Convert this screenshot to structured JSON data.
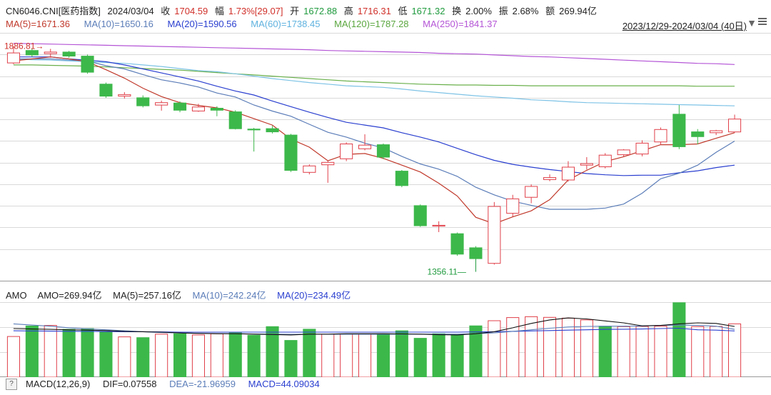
{
  "header": {
    "code": "CN6046.CNI[医药指数]",
    "date": "2024/03/04",
    "close_label": "收",
    "close": "1704.59",
    "change_label": "幅",
    "change": "1.73%[29.07]",
    "open_label": "开",
    "open": "1672.88",
    "high_label": "高",
    "high": "1716.31",
    "low_label": "低",
    "low": "1671.32",
    "turnover_label": "换",
    "turnover": "2.00%",
    "amplitude_label": "振",
    "amplitude": "2.68%",
    "amount_label": "额",
    "amount": "269.94亿"
  },
  "ma_line": {
    "ma5": "MA(5)=1671.36",
    "ma10": "MA(10)=1650.16",
    "ma20": "MA(20)=1590.56",
    "ma60": "MA(60)=1738.45",
    "ma120": "MA(120)=1787.28",
    "ma250": "MA(250)=1841.37",
    "range": "2023/12/29-2024/03/04 (40日)"
  },
  "amo_line": {
    "label": "AMO",
    "amo": "AMO=269.94亿",
    "ma5": "MA(5)=257.16亿",
    "ma10": "MA(10)=242.24亿",
    "ma20": "MA(20)=234.49亿"
  },
  "macd_line": {
    "help": "?",
    "label": "MACD(12,26,9)",
    "dif": "DIF=0.07558",
    "dea": "DEA=-21.96959",
    "macd": "MACD=44.09034"
  },
  "colors": {
    "up": "#e0404a",
    "down": "#3cb84a",
    "ma5": "#c0392b",
    "ma10": "#5b7db8",
    "ma20": "#2a3fcf",
    "ma60": "#7ec3e6",
    "ma120": "#6ab04c",
    "ma250": "#b455d6",
    "amo_ma5": "#111111",
    "amo_ma10": "#5b7db8",
    "amo_ma20": "#2a3fcf"
  },
  "chart_data": [
    {
      "type": "candlestick",
      "annotations": {
        "high": "1886.81",
        "low": "1356.11"
      },
      "ohlc": [
        [
          1845,
          1870,
          1887,
          1842
        ],
        [
          1876,
          1865,
          1880,
          1860
        ],
        [
          1868,
          1872,
          1880,
          1858
        ],
        [
          1872,
          1862,
          1875,
          1858
        ],
        [
          1862,
          1822,
          1866,
          1818
        ],
        [
          1792,
          1762,
          1796,
          1758
        ],
        [
          1762,
          1766,
          1772,
          1756
        ],
        [
          1758,
          1738,
          1764,
          1734
        ],
        [
          1740,
          1746,
          1751,
          1726
        ],
        [
          1745,
          1727,
          1749,
          1722
        ],
        [
          1725,
          1735,
          1743,
          1723
        ],
        [
          1732,
          1727,
          1737,
          1712
        ],
        [
          1723,
          1681,
          1727,
          1679
        ],
        [
          1680,
          1679,
          1683,
          1624
        ],
        [
          1681,
          1673,
          1688,
          1669
        ],
        [
          1665,
          1577,
          1668,
          1573
        ],
        [
          1572,
          1588,
          1592,
          1567
        ],
        [
          1591,
          1597,
          1600,
          1546
        ],
        [
          1606,
          1643,
          1647,
          1600
        ],
        [
          1631,
          1640,
          1667,
          1627
        ],
        [
          1641,
          1610,
          1644,
          1605
        ],
        [
          1575,
          1539,
          1578,
          1535
        ],
        [
          1489,
          1439,
          1492,
          1436
        ],
        [
          1438,
          1440,
          1450,
          1423
        ],
        [
          1419,
          1368,
          1422,
          1364
        ],
        [
          1384,
          1357,
          1388,
          1356
        ],
        [
          1345,
          1487,
          1498,
          1342
        ],
        [
          1470,
          1506,
          1516,
          1462
        ],
        [
          1510,
          1537,
          1542,
          1495
        ],
        [
          1554,
          1559,
          1567,
          1550
        ],
        [
          1553,
          1585,
          1600,
          1549
        ],
        [
          1590,
          1594,
          1610,
          1579
        ],
        [
          1586,
          1615,
          1620,
          1582
        ],
        [
          1616,
          1628,
          1630,
          1611
        ],
        [
          1618,
          1645,
          1652,
          1612
        ],
        [
          1648,
          1679,
          1684,
          1641
        ],
        [
          1717,
          1636,
          1740,
          1630
        ],
        [
          1673,
          1661,
          1680,
          1642
        ],
        [
          1671,
          1676,
          1678,
          1665
        ],
        [
          1673,
          1705,
          1716,
          1671
        ]
      ],
      "ma5": [
        1850,
        1855,
        1860,
        1855,
        1848,
        1828,
        1807,
        1782,
        1761,
        1746,
        1739,
        1733,
        1722,
        1706,
        1690,
        1655,
        1635,
        1601,
        1617,
        1619,
        1607,
        1590,
        1573,
        1545,
        1513,
        1460,
        1444,
        1461,
        1476,
        1504,
        1553,
        1577,
        1599,
        1611,
        1626,
        1641,
        1641,
        1643,
        1657,
        1671
      ],
      "ma10": [
        1855,
        1855,
        1855,
        1852,
        1850,
        1838,
        1830,
        1816,
        1803,
        1795,
        1785,
        1770,
        1760,
        1740,
        1725,
        1712,
        1692,
        1672,
        1660,
        1645,
        1633,
        1612,
        1593,
        1580,
        1562,
        1535,
        1516,
        1500,
        1490,
        1480,
        1480,
        1480,
        1483,
        1493,
        1520,
        1556,
        1570,
        1590,
        1622,
        1650
      ],
      "ma20": [
        1860,
        1860,
        1860,
        1855,
        1852,
        1848,
        1840,
        1830,
        1820,
        1810,
        1800,
        1787,
        1775,
        1765,
        1750,
        1736,
        1722,
        1709,
        1697,
        1690,
        1683,
        1671,
        1660,
        1648,
        1632,
        1616,
        1602,
        1592,
        1585,
        1579,
        1574,
        1569,
        1566,
        1564,
        1565,
        1565,
        1571,
        1576,
        1584,
        1590
      ],
      "ma60": [
        1855,
        1853,
        1852,
        1850,
        1848,
        1846,
        1844,
        1840,
        1836,
        1831,
        1826,
        1823,
        1818,
        1812,
        1806,
        1801,
        1796,
        1792,
        1788,
        1786,
        1784,
        1780,
        1775,
        1771,
        1767,
        1763,
        1760,
        1757,
        1753,
        1751,
        1748,
        1746,
        1745,
        1744,
        1743,
        1742,
        1741,
        1740,
        1739,
        1738
      ],
      "ma120": [
        1840,
        1840,
        1839,
        1838,
        1837,
        1835,
        1833,
        1831,
        1829,
        1827,
        1824,
        1821,
        1818,
        1815,
        1812,
        1809,
        1806,
        1803,
        1800,
        1798,
        1796,
        1794,
        1792,
        1791,
        1790,
        1790,
        1789,
        1789,
        1788,
        1788,
        1788,
        1788,
        1788,
        1788,
        1788,
        1788,
        1788,
        1787,
        1787,
        1787
      ],
      "ma250": [
        1894,
        1893,
        1892,
        1891,
        1890,
        1889,
        1888,
        1887,
        1886,
        1885,
        1884,
        1883,
        1882,
        1881,
        1880,
        1879,
        1878,
        1876,
        1875,
        1874,
        1873,
        1872,
        1871,
        1869,
        1868,
        1867,
        1865,
        1863,
        1861,
        1860,
        1858,
        1856,
        1854,
        1852,
        1850,
        1848,
        1846,
        1844,
        1843,
        1841
      ]
    },
    {
      "type": "bar",
      "title": "AMO",
      "unit": "亿",
      "values": [
        206,
        259,
        262,
        242,
        246,
        229,
        204,
        200,
        218,
        220,
        214,
        220,
        224,
        212,
        256,
        186,
        243,
        217,
        218,
        218,
        220,
        235,
        197,
        220,
        216,
        260,
        286,
        302,
        306,
        303,
        299,
        290,
        258,
        256,
        257,
        258,
        377,
        256,
        257,
        270
      ],
      "up": [
        true,
        false,
        true,
        false,
        false,
        false,
        true,
        false,
        true,
        false,
        true,
        true,
        false,
        false,
        false,
        false,
        false,
        true,
        true,
        true,
        false,
        false,
        false,
        false,
        false,
        false,
        true,
        true,
        true,
        true,
        true,
        true,
        false,
        true,
        true,
        true,
        false,
        true,
        true,
        true
      ],
      "ma5": [
        246,
        244,
        242,
        240,
        238,
        236,
        232,
        230,
        228,
        224,
        222,
        220,
        220,
        218,
        216,
        214,
        218,
        218,
        220,
        220,
        220,
        219,
        218,
        215,
        214,
        220,
        230,
        250,
        272,
        290,
        300,
        295,
        285,
        275,
        260,
        262,
        270,
        275,
        272,
        257
      ],
      "ma10": [
        270,
        264,
        258,
        250,
        245,
        240,
        235,
        230,
        226,
        224,
        222,
        221,
        220,
        219,
        218,
        217,
        217,
        217,
        217,
        217,
        217,
        218,
        218,
        218,
        218,
        220,
        224,
        232,
        240,
        248,
        254,
        257,
        258,
        258,
        259,
        262,
        264,
        262,
        258,
        242
      ],
      "ma20": [
        235,
        234,
        233,
        232,
        232,
        231,
        230,
        230,
        229,
        228,
        228,
        228,
        228,
        228,
        228,
        228,
        228,
        228,
        228,
        228,
        228,
        228,
        228,
        228,
        228,
        229,
        230,
        232,
        234,
        236,
        238,
        240,
        242,
        243,
        244,
        246,
        248,
        240,
        238,
        234
      ]
    }
  ]
}
